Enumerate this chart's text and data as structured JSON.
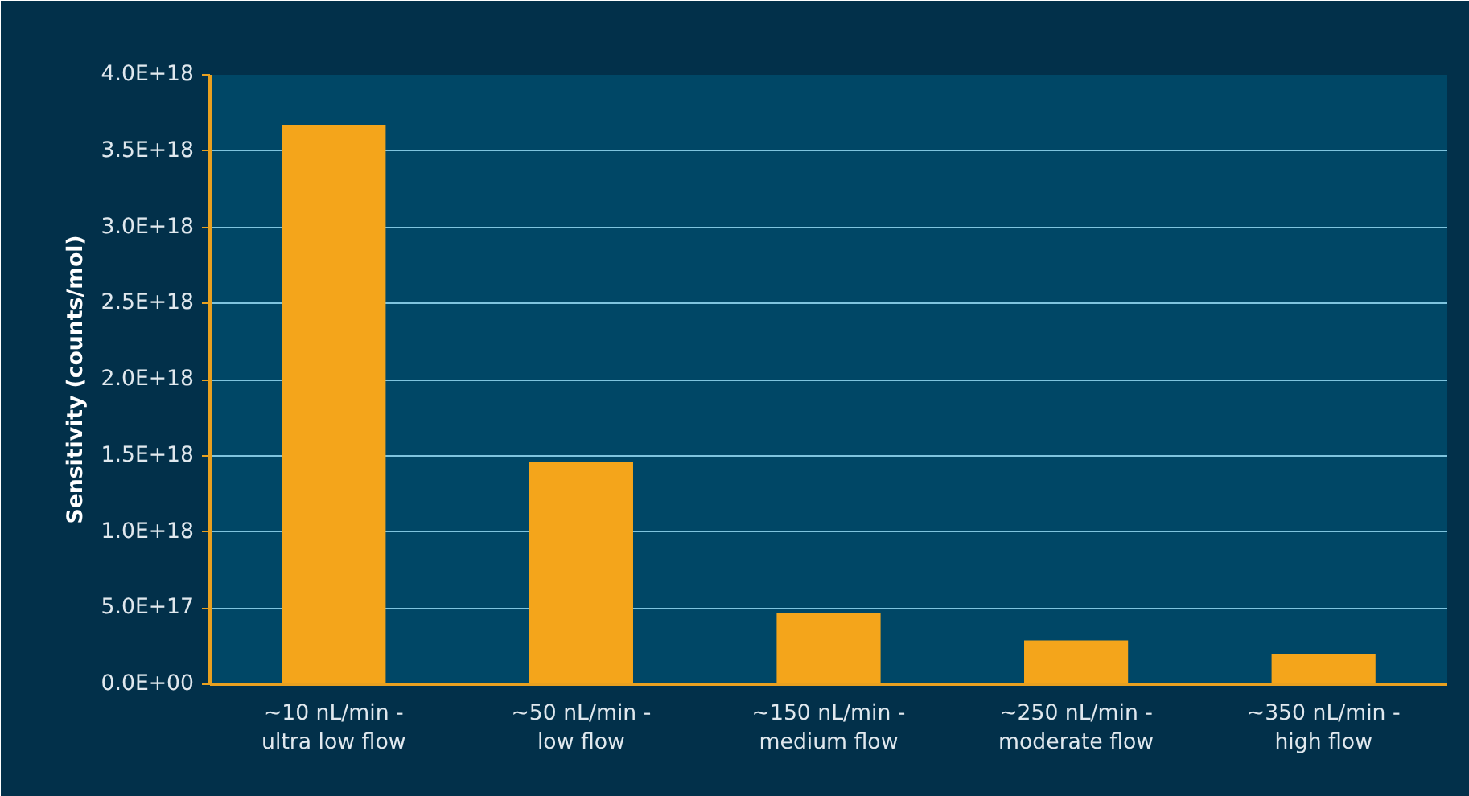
{
  "chart_data": {
    "type": "bar",
    "ylabel": "Sensitivity (counts/mol)",
    "categories": [
      "~10 nL/min -\nultra low flow",
      "~50 nL/min -\nlow flow",
      "~150 nL/min -\nmedium flow",
      "~250 nL/min -\nmoderate flow",
      "~350 nL/min -\nhigh flow"
    ],
    "values": [
      3.67e+18,
      1.46e+18,
      4.66e+17,
      2.87e+17,
      1.98e+17
    ],
    "color": "#f4a51b",
    "ylim": [
      0,
      4e+18
    ],
    "yticks": [
      {
        "value": 0,
        "label": "0.0E+00"
      },
      {
        "value": 5e+17,
        "label": "5.0E+17"
      },
      {
        "value": 1e+18,
        "label": "1.0E+18"
      },
      {
        "value": 1.5e+18,
        "label": "1.5E+18"
      },
      {
        "value": 2e+18,
        "label": "2.0E+18"
      },
      {
        "value": 2.5e+18,
        "label": "2.5E+18"
      },
      {
        "value": 3e+18,
        "label": "3.0E+18"
      },
      {
        "value": 3.5e+18,
        "label": "3.5E+18"
      },
      {
        "value": 4e+18,
        "label": "4.0E+18"
      }
    ],
    "grid": "y"
  }
}
